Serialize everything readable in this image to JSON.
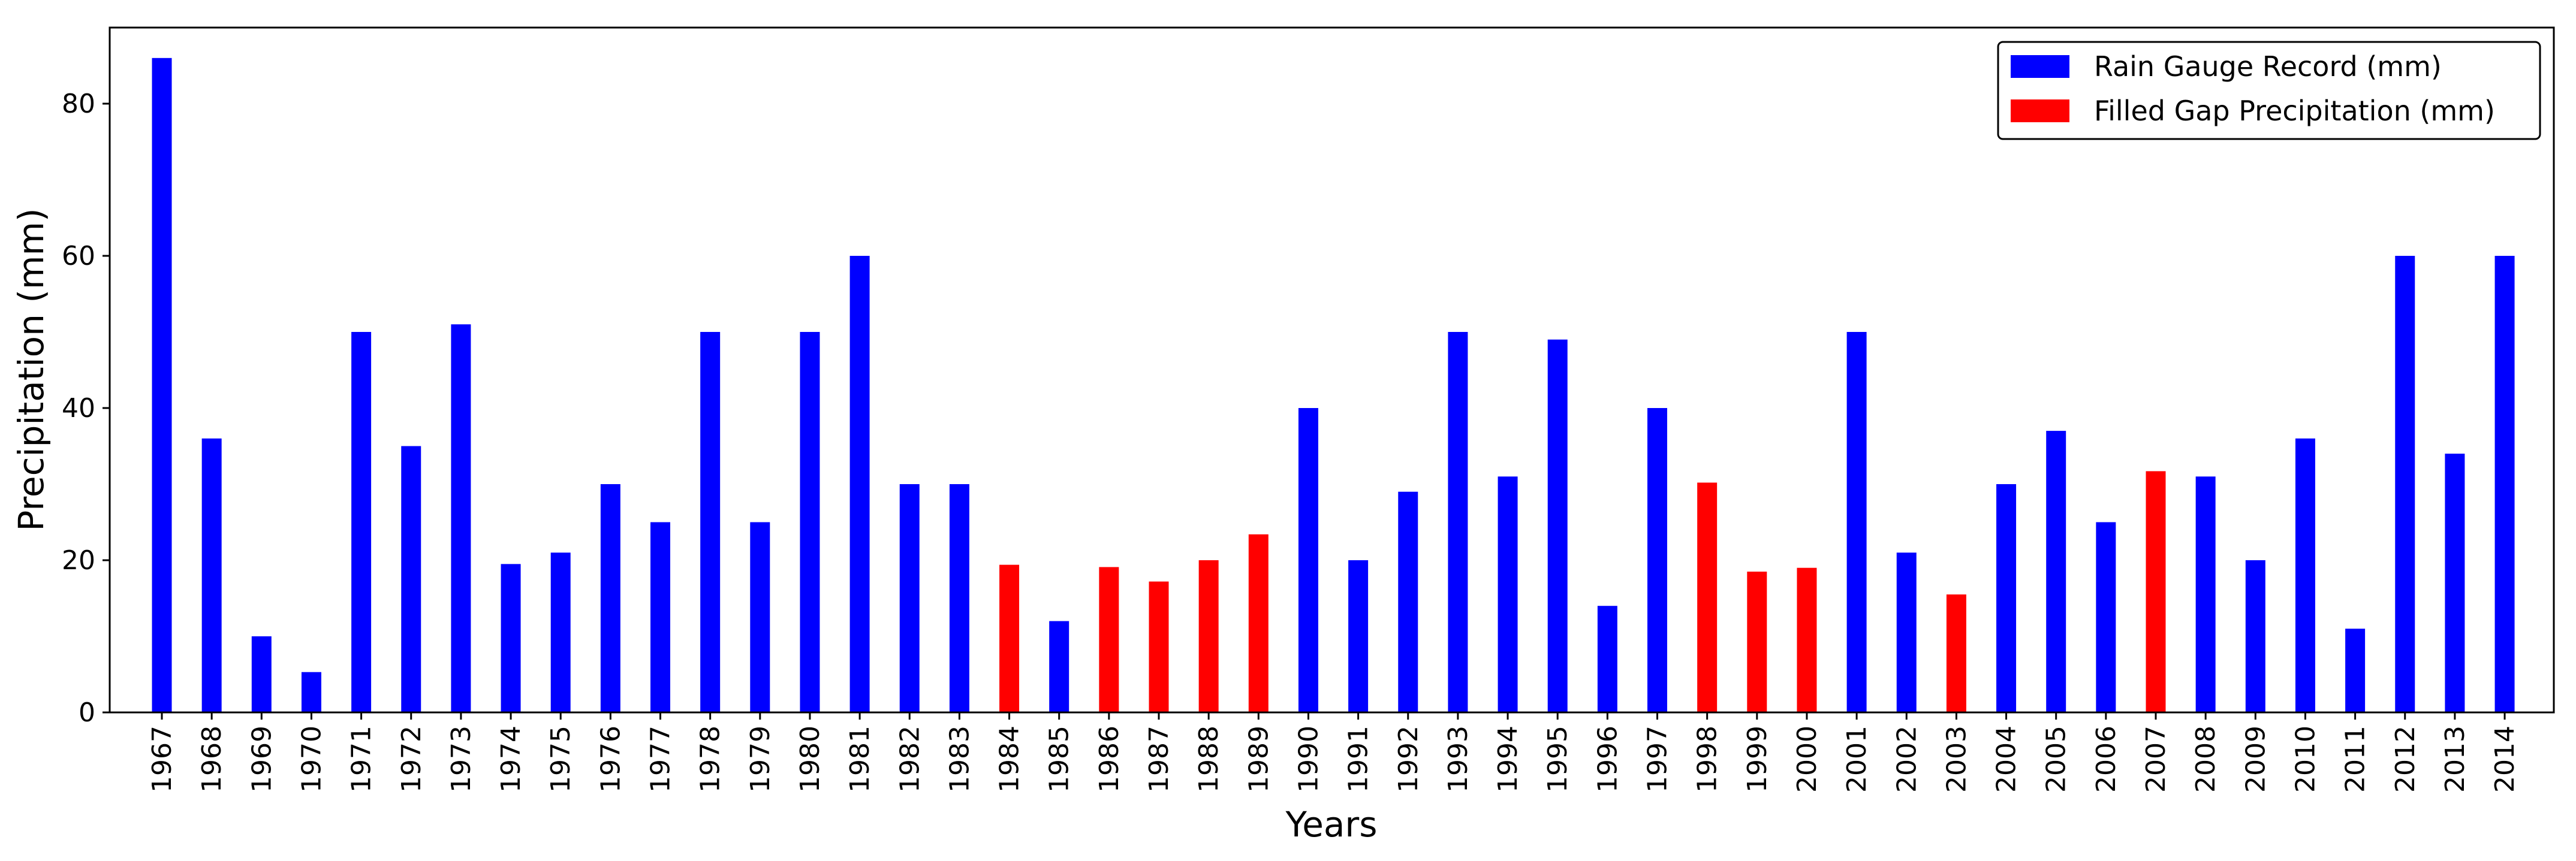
{
  "chart_data": {
    "type": "bar",
    "xlabel": "Years",
    "ylabel": "Precipitation (mm)",
    "ylim": [
      0,
      90
    ],
    "yticks": [
      0,
      20,
      40,
      60,
      80
    ],
    "grid": false,
    "legend_position": "top-right",
    "categories": [
      "1967",
      "1968",
      "1969",
      "1970",
      "1971",
      "1972",
      "1973",
      "1974",
      "1975",
      "1976",
      "1977",
      "1978",
      "1979",
      "1980",
      "1981",
      "1982",
      "1983",
      "1984",
      "1985",
      "1986",
      "1987",
      "1988",
      "1989",
      "1990",
      "1991",
      "1992",
      "1993",
      "1994",
      "1995",
      "1996",
      "1997",
      "1998",
      "1999",
      "2000",
      "2001",
      "2002",
      "2003",
      "2004",
      "2005",
      "2006",
      "2007",
      "2008",
      "2009",
      "2010",
      "2011",
      "2012",
      "2013",
      "2014"
    ],
    "values": [
      86,
      36,
      10,
      5.3,
      50,
      35,
      51,
      19.5,
      21,
      30,
      25,
      50,
      25,
      50,
      60,
      30,
      30,
      19.4,
      12,
      19.1,
      17.2,
      20,
      23.4,
      40,
      20,
      29,
      50,
      31,
      49,
      14,
      40,
      30.2,
      18.5,
      19,
      50,
      21,
      15.5,
      30,
      37,
      25,
      31.7,
      31,
      20,
      36,
      11,
      60,
      34,
      60
    ],
    "series": [
      {
        "name": "Rain Gauge Record (mm)",
        "color": "#0000ff"
      },
      {
        "name": "Filled Gap Precipitation (mm)",
        "color": "#ff0000"
      }
    ],
    "series_index": [
      0,
      0,
      0,
      0,
      0,
      0,
      0,
      0,
      0,
      0,
      0,
      0,
      0,
      0,
      0,
      0,
      0,
      1,
      0,
      1,
      1,
      1,
      1,
      0,
      0,
      0,
      0,
      0,
      0,
      0,
      0,
      1,
      1,
      1,
      0,
      0,
      1,
      0,
      0,
      0,
      1,
      0,
      0,
      0,
      0,
      0,
      0,
      0
    ]
  }
}
